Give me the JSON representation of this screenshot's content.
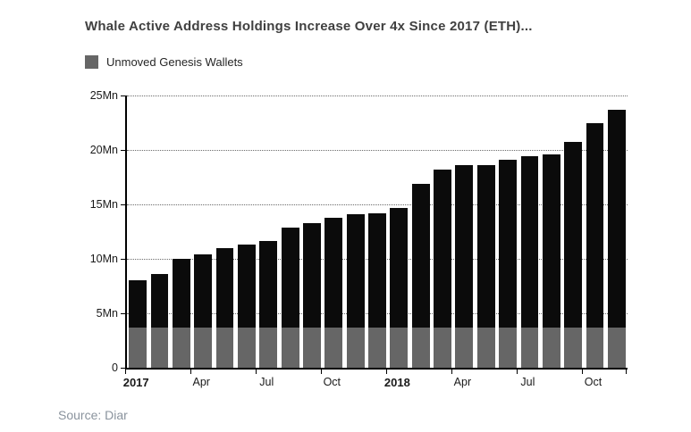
{
  "title": "Whale Active Address Holdings Increase Over 4x Since 2017 (ETH)...",
  "legend": {
    "label": "Unmoved Genesis Wallets",
    "color": "#666666"
  },
  "source": "Source: Diar",
  "chart_data": {
    "type": "bar",
    "title": "Whale Active Address Holdings Increase Over 4x Since 2017 (ETH)...",
    "unit": "Mn",
    "ylim": [
      0,
      25
    ],
    "grid": "dotted-horizontal",
    "legend_position": "top-left",
    "bar_color": "#0b0b0b",
    "overlay": {
      "name": "Unmoved Genesis Wallets",
      "value": 3.7,
      "color": "#666666"
    },
    "categories": [
      "Jan 2017",
      "Feb 2017",
      "Mar 2017",
      "Apr 2017",
      "May 2017",
      "Jun 2017",
      "Jul 2017",
      "Aug 2017",
      "Sep 2017",
      "Oct 2017",
      "Nov 2017",
      "Dec 2017",
      "Jan 2018",
      "Feb 2018",
      "Mar 2018",
      "Apr 2018",
      "May 2018",
      "Jun 2018",
      "Jul 2018",
      "Aug 2018",
      "Sep 2018",
      "Oct 2018",
      "Nov 2018"
    ],
    "values": [
      8.0,
      8.6,
      10.0,
      10.4,
      11.0,
      11.3,
      11.6,
      12.9,
      13.3,
      13.8,
      14.1,
      14.2,
      14.7,
      16.9,
      18.2,
      18.6,
      18.6,
      19.1,
      19.4,
      19.6,
      20.7,
      22.5,
      23.7
    ],
    "yticks": [
      {
        "value": 0,
        "label": "0"
      },
      {
        "value": 5,
        "label": "5Mn"
      },
      {
        "value": 10,
        "label": "10Mn"
      },
      {
        "value": 15,
        "label": "15Mn"
      },
      {
        "value": 20,
        "label": "20Mn"
      },
      {
        "value": 25,
        "label": "25Mn"
      }
    ],
    "xticks": [
      {
        "index": 0,
        "label": "2017",
        "bold": true
      },
      {
        "index": 3,
        "label": "Apr",
        "bold": false
      },
      {
        "index": 6,
        "label": "Jul",
        "bold": false
      },
      {
        "index": 9,
        "label": "Oct",
        "bold": false
      },
      {
        "index": 12,
        "label": "2018",
        "bold": true
      },
      {
        "index": 15,
        "label": "Apr",
        "bold": false
      },
      {
        "index": 18,
        "label": "Jul",
        "bold": false
      },
      {
        "index": 21,
        "label": "Oct",
        "bold": false
      }
    ]
  }
}
